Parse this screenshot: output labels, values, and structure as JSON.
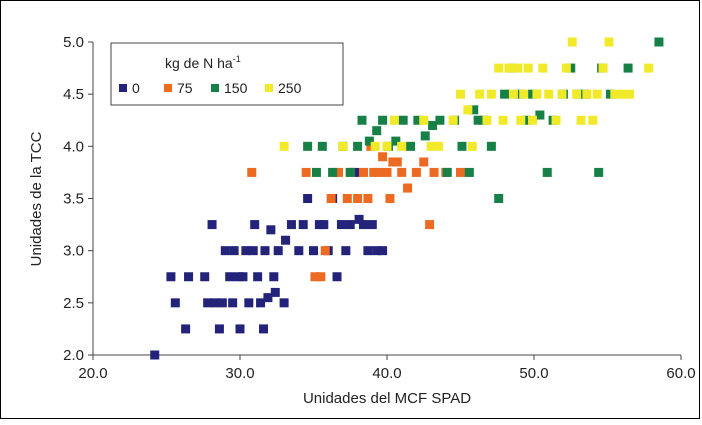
{
  "chart_data": {
    "type": "scatter",
    "xlabel": "Unidades del MCF SPAD",
    "ylabel": "Unidades de la TCC",
    "xlim": [
      20,
      60
    ],
    "ylim": [
      2.0,
      5.0
    ],
    "x_ticks": [
      "20.0",
      "30.0",
      "40.0",
      "50.0",
      "60.0"
    ],
    "y_ticks": [
      "2.0",
      "2.5",
      "3.0",
      "3.5",
      "4.0",
      "4.5",
      "5.0"
    ],
    "legend": {
      "title": "kg de N ha",
      "title_superscript": "-1",
      "placement": "top-left"
    },
    "series": [
      {
        "name": "0",
        "color": "#23237a",
        "points": [
          [
            24.2,
            2.0
          ],
          [
            25.3,
            2.75
          ],
          [
            25.6,
            2.5
          ],
          [
            26.3,
            2.25
          ],
          [
            26.5,
            2.75
          ],
          [
            27.6,
            2.75
          ],
          [
            27.8,
            2.5
          ],
          [
            28.1,
            3.25
          ],
          [
            28.3,
            2.5
          ],
          [
            28.6,
            2.25
          ],
          [
            28.8,
            2.5
          ],
          [
            29.0,
            3.0
          ],
          [
            29.3,
            2.75
          ],
          [
            29.6,
            3.0
          ],
          [
            29.5,
            2.5
          ],
          [
            29.9,
            2.75
          ],
          [
            30.2,
            2.75
          ],
          [
            30.0,
            2.25
          ],
          [
            30.4,
            3.0
          ],
          [
            30.6,
            2.5
          ],
          [
            30.9,
            3.0
          ],
          [
            31.0,
            3.25
          ],
          [
            31.2,
            2.75
          ],
          [
            31.4,
            2.5
          ],
          [
            31.6,
            2.25
          ],
          [
            31.7,
            3.0
          ],
          [
            31.9,
            2.55
          ],
          [
            32.1,
            3.2
          ],
          [
            32.3,
            2.75
          ],
          [
            32.4,
            2.6
          ],
          [
            32.6,
            3.0
          ],
          [
            33.1,
            3.1
          ],
          [
            33.0,
            2.5
          ],
          [
            33.5,
            3.25
          ],
          [
            34.0,
            3.0
          ],
          [
            34.3,
            3.25
          ],
          [
            34.6,
            3.5
          ],
          [
            35.0,
            3.0
          ],
          [
            35.4,
            3.25
          ],
          [
            35.7,
            3.25
          ],
          [
            36.0,
            3.0
          ],
          [
            36.3,
            3.5
          ],
          [
            36.6,
            2.75
          ],
          [
            36.9,
            3.25
          ],
          [
            37.2,
            3.0
          ],
          [
            37.5,
            3.25
          ],
          [
            37.8,
            3.75
          ],
          [
            38.1,
            3.3
          ],
          [
            38.4,
            3.25
          ],
          [
            38.7,
            3.0
          ],
          [
            39.0,
            3.25
          ],
          [
            39.3,
            3.0
          ],
          [
            39.7,
            3.0
          ]
        ]
      },
      {
        "name": "75",
        "color": "#ec6a22",
        "points": [
          [
            30.8,
            3.75
          ],
          [
            34.5,
            3.75
          ],
          [
            35.1,
            2.75
          ],
          [
            35.5,
            2.75
          ],
          [
            35.8,
            3.0
          ],
          [
            36.2,
            3.5
          ],
          [
            36.7,
            3.75
          ],
          [
            37.3,
            3.5
          ],
          [
            37.5,
            3.75
          ],
          [
            38.0,
            3.5
          ],
          [
            38.4,
            3.75
          ],
          [
            38.7,
            3.5
          ],
          [
            38.9,
            4.0
          ],
          [
            39.1,
            3.75
          ],
          [
            39.4,
            3.75
          ],
          [
            39.7,
            3.9
          ],
          [
            40.0,
            3.75
          ],
          [
            40.2,
            3.5
          ],
          [
            40.4,
            3.85
          ],
          [
            40.7,
            3.85
          ],
          [
            41.0,
            3.75
          ],
          [
            41.4,
            3.6
          ],
          [
            42.0,
            3.75
          ],
          [
            42.5,
            3.85
          ],
          [
            42.9,
            3.25
          ],
          [
            43.2,
            3.75
          ],
          [
            44.0,
            3.75
          ],
          [
            45.0,
            3.75
          ]
        ]
      },
      {
        "name": "150",
        "color": "#178046",
        "points": [
          [
            34.6,
            4.0
          ],
          [
            35.2,
            3.75
          ],
          [
            35.6,
            4.0
          ],
          [
            36.3,
            3.75
          ],
          [
            37.0,
            4.0
          ],
          [
            37.5,
            3.75
          ],
          [
            38.0,
            4.0
          ],
          [
            38.3,
            4.25
          ],
          [
            38.8,
            4.05
          ],
          [
            39.3,
            4.15
          ],
          [
            39.7,
            4.25
          ],
          [
            40.1,
            4.0
          ],
          [
            40.6,
            4.05
          ],
          [
            41.1,
            4.25
          ],
          [
            41.6,
            4.0
          ],
          [
            42.1,
            4.25
          ],
          [
            42.6,
            4.1
          ],
          [
            43.1,
            4.2
          ],
          [
            43.6,
            4.25
          ],
          [
            44.1,
            3.75
          ],
          [
            44.6,
            4.25
          ],
          [
            45.1,
            4.0
          ],
          [
            45.6,
            3.75
          ],
          [
            45.9,
            4.35
          ],
          [
            46.2,
            4.25
          ],
          [
            46.6,
            4.25
          ],
          [
            47.1,
            4.0
          ],
          [
            47.6,
            3.5
          ],
          [
            48.0,
            4.5
          ],
          [
            48.5,
            4.75
          ],
          [
            49.0,
            4.5
          ],
          [
            49.5,
            4.25
          ],
          [
            49.9,
            4.5
          ],
          [
            50.4,
            4.3
          ],
          [
            50.9,
            3.75
          ],
          [
            51.3,
            4.25
          ],
          [
            52.0,
            4.5
          ],
          [
            52.5,
            4.75
          ],
          [
            53.0,
            4.5
          ],
          [
            53.5,
            4.5
          ],
          [
            54.4,
            3.75
          ],
          [
            54.6,
            4.75
          ],
          [
            55.2,
            4.5
          ],
          [
            56.4,
            4.75
          ],
          [
            58.5,
            5.0
          ]
        ]
      },
      {
        "name": "250",
        "color": "#f1ea2a",
        "points": [
          [
            33.0,
            4.0
          ],
          [
            37.0,
            4.0
          ],
          [
            39.2,
            4.0
          ],
          [
            40.0,
            4.0
          ],
          [
            40.5,
            4.25
          ],
          [
            41.0,
            4.0
          ],
          [
            42.5,
            4.25
          ],
          [
            43.0,
            4.0
          ],
          [
            43.5,
            4.0
          ],
          [
            44.5,
            4.25
          ],
          [
            45.0,
            4.5
          ],
          [
            45.5,
            4.35
          ],
          [
            45.8,
            4.0
          ],
          [
            46.3,
            4.5
          ],
          [
            46.8,
            4.25
          ],
          [
            47.1,
            4.5
          ],
          [
            47.6,
            4.75
          ],
          [
            47.9,
            4.25
          ],
          [
            48.3,
            4.75
          ],
          [
            48.6,
            4.5
          ],
          [
            48.9,
            4.75
          ],
          [
            49.1,
            4.25
          ],
          [
            49.3,
            4.5
          ],
          [
            49.6,
            4.75
          ],
          [
            49.9,
            4.25
          ],
          [
            50.2,
            4.5
          ],
          [
            50.6,
            4.75
          ],
          [
            51.0,
            4.5
          ],
          [
            51.5,
            4.25
          ],
          [
            51.9,
            4.5
          ],
          [
            52.2,
            4.75
          ],
          [
            52.6,
            5.0
          ],
          [
            52.9,
            4.5
          ],
          [
            53.2,
            4.25
          ],
          [
            53.6,
            4.5
          ],
          [
            54.0,
            4.25
          ],
          [
            54.3,
            4.5
          ],
          [
            54.7,
            4.75
          ],
          [
            55.1,
            5.0
          ],
          [
            55.5,
            4.5
          ],
          [
            56.0,
            4.5
          ],
          [
            56.5,
            4.5
          ],
          [
            57.8,
            4.75
          ]
        ]
      }
    ]
  }
}
